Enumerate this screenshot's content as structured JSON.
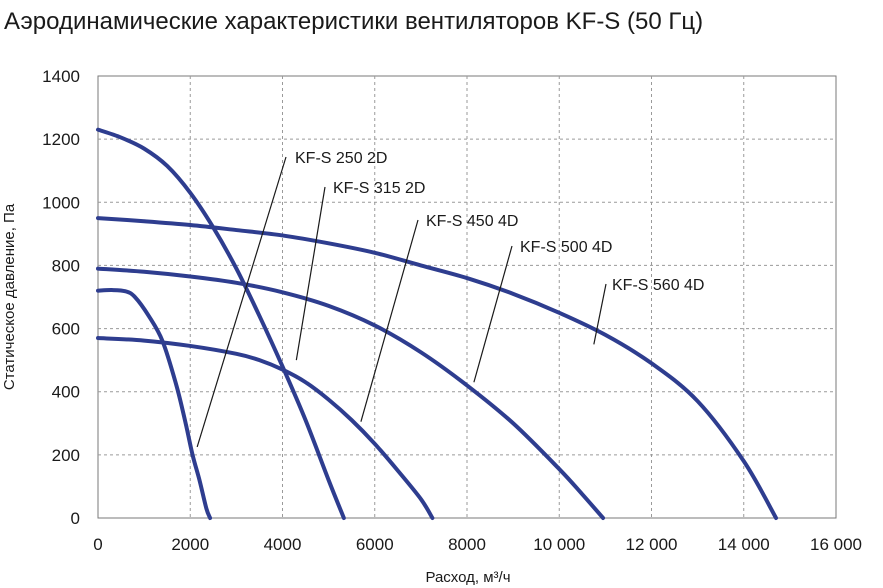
{
  "chart_data": {
    "type": "line",
    "title": "Аэродинамические характеристики вентиляторов KF-S (50 Гц)",
    "xlabel": "Расход, м³/ч",
    "ylabel": "Статическое давление, Па",
    "xlim": [
      0,
      16000
    ],
    "ylim": [
      0,
      1400
    ],
    "x_ticks": [
      0,
      2000,
      4000,
      6000,
      8000,
      10000,
      12000,
      14000,
      16000
    ],
    "x_tick_labels": [
      "0",
      "2000",
      "4000",
      "6000",
      "8000",
      "10 000",
      "12 000",
      "14 000",
      "16 000"
    ],
    "y_ticks": [
      0,
      200,
      400,
      600,
      800,
      1000,
      1200,
      1400
    ],
    "y_tick_labels": [
      "0",
      "200",
      "400",
      "600",
      "800",
      "1000",
      "1200",
      "1400"
    ],
    "grid": true,
    "line_color": "#2E3D8F",
    "series": [
      {
        "name": "KF-S 250 2D",
        "x": [
          0,
          300,
          600,
          800,
          1100,
          1400,
          1700,
          1900,
          2050,
          2200,
          2350,
          2430
        ],
        "y": [
          720,
          722,
          718,
          700,
          640,
          560,
          420,
          300,
          200,
          120,
          30,
          0
        ]
      },
      {
        "name": "KF-S 315 2D",
        "x": [
          0,
          500,
          1000,
          1500,
          2000,
          2500,
          3000,
          3500,
          4000,
          4500,
          5000,
          5330
        ],
        "y": [
          1230,
          1205,
          1170,
          1115,
          1030,
          920,
          790,
          640,
          480,
          310,
          120,
          0
        ]
      },
      {
        "name": "KF-S 450 4D",
        "x": [
          0,
          1000,
          2000,
          3000,
          3500,
          4000,
          4500,
          5000,
          5500,
          6000,
          6500,
          7000,
          7250
        ],
        "y": [
          570,
          562,
          545,
          520,
          500,
          470,
          430,
          375,
          310,
          235,
          150,
          60,
          0
        ]
      },
      {
        "name": "KF-S 500 4D",
        "x": [
          0,
          1000,
          2000,
          3000,
          4000,
          5000,
          6000,
          7000,
          8000,
          9000,
          10000,
          10500,
          10950
        ],
        "y": [
          790,
          780,
          765,
          745,
          715,
          672,
          610,
          525,
          420,
          300,
          155,
          75,
          0
        ]
      },
      {
        "name": "KF-S 560 4D",
        "x": [
          0,
          1000,
          2000,
          3000,
          4000,
          5000,
          6000,
          7000,
          8000,
          9000,
          10000,
          11000,
          12000,
          13000,
          14000,
          14700
        ],
        "y": [
          950,
          940,
          928,
          912,
          895,
          870,
          840,
          800,
          760,
          710,
          650,
          580,
          490,
          370,
          180,
          0
        ]
      }
    ],
    "annotations": [
      {
        "label": "KF-S 250 2D",
        "tail_x": 2150,
        "tail_y": 225
      },
      {
        "label": "KF-S 315 2D",
        "tail_x": 4300,
        "tail_y": 500
      },
      {
        "label": "KF-S 450 4D",
        "tail_x": 5700,
        "tail_y": 305
      },
      {
        "label": "KF-S 500 4D",
        "tail_x": 8150,
        "tail_y": 430
      },
      {
        "label": "KF-S 560 4D",
        "tail_x": 10750,
        "tail_y": 550
      }
    ]
  }
}
